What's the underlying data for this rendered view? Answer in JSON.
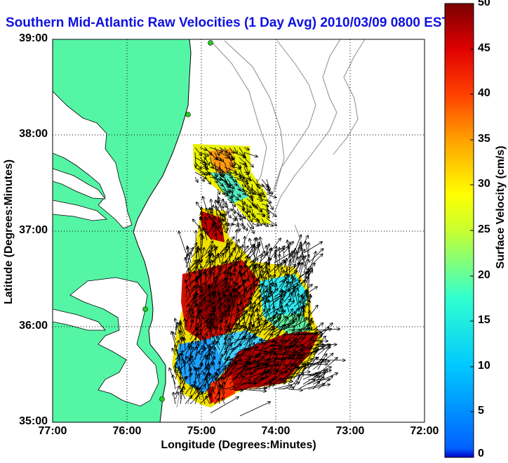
{
  "title": "Southern Mid-Atlantic Raw Velocities (1 Day Avg) 2010/03/09 0800 EST",
  "chart_data": {
    "type": "map",
    "xlabel": "Longitude (Degrees:Minutes)",
    "ylabel": "Latitude (Degrees:Minutes)",
    "x_ticks": [
      "77:00",
      "76:00",
      "75:00",
      "74:00",
      "73:00",
      "72:00"
    ],
    "y_ticks": [
      "39:00",
      "38:00",
      "37:00",
      "36:00",
      "35:00"
    ],
    "xlim": [
      -77,
      -72
    ],
    "ylim": [
      35,
      39
    ],
    "grid": true,
    "colorbar": {
      "label": "Surface Velocity (cm/s)",
      "range": [
        0,
        50
      ],
      "ticks": [
        "50",
        "45",
        "40",
        "35",
        "30",
        "25",
        "20",
        "15",
        "10",
        "5",
        "0"
      ],
      "colormap": "jet"
    },
    "colors": {
      "land": "#55f5a6",
      "title": "#1010e0",
      "contour": "#8c8c8c",
      "station": "#22cc22"
    }
  }
}
